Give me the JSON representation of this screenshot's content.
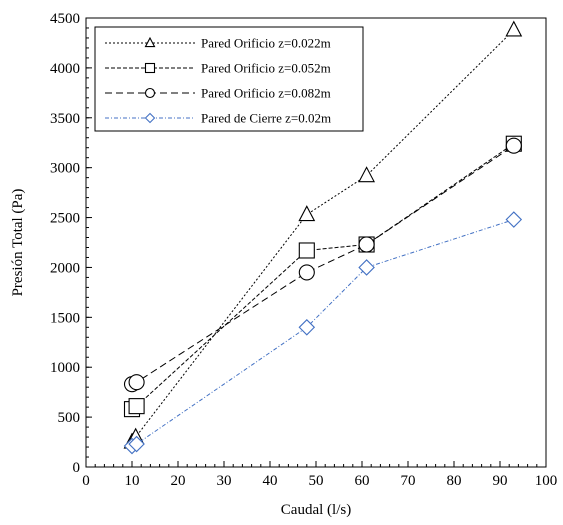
{
  "chart_data": {
    "type": "line",
    "xlabel": "Caudal (l/s)",
    "ylabel": "Presión Total (Pa)",
    "xlim": [
      0,
      100
    ],
    "ylim": [
      0,
      4500
    ],
    "x_ticks": [
      0,
      10,
      20,
      30,
      40,
      50,
      60,
      70,
      80,
      90,
      100
    ],
    "y_ticks": [
      0,
      500,
      1000,
      1500,
      2000,
      2500,
      3000,
      3500,
      4000,
      4500
    ],
    "x_minor_step": 2,
    "y_minor_step": 100,
    "grid": false,
    "legend_position": "top-left",
    "series": [
      {
        "name": "Pared Orificio z=0.022m",
        "marker": "triangle",
        "color": "#000000",
        "dash": "dotted",
        "x": [
          10.0,
          10.8,
          48.0,
          61.0,
          93.0
        ],
        "y": [
          250,
          300,
          2530,
          2920,
          4380
        ]
      },
      {
        "name": "Pared Orificio z=0.052m",
        "marker": "square",
        "color": "#000000",
        "dash": "short-dash",
        "x": [
          10.0,
          11.0,
          48.0,
          61.0,
          93.0
        ],
        "y": [
          580,
          610,
          2170,
          2230,
          3240
        ]
      },
      {
        "name": "Pared Orificio z=0.082m",
        "marker": "circle",
        "color": "#000000",
        "dash": "long-dash",
        "x": [
          10.0,
          11.0,
          48.0,
          61.0,
          93.0
        ],
        "y": [
          830,
          850,
          1950,
          2230,
          3220
        ]
      },
      {
        "name": "Pared de Cierre z=0.02m",
        "marker": "diamond",
        "color": "#4472C4",
        "dash": "dash-dot",
        "x": [
          10.0,
          11.0,
          48.0,
          61.0,
          93.0
        ],
        "y": [
          210,
          230,
          1400,
          2000,
          2480
        ]
      }
    ]
  }
}
